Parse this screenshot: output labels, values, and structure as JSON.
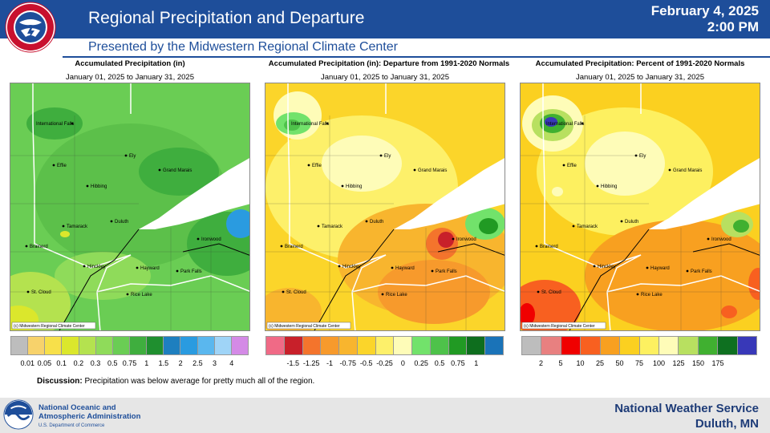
{
  "header": {
    "title": "Regional Precipitation and Departure",
    "date": "February 4, 2025",
    "time": "2:00 PM",
    "subtitle": "Presented by the Midwestern Regional Climate Center"
  },
  "panels": [
    {
      "title": "Accumulated Precipitation (in)",
      "range": "January 01, 2025 to January 31, 2025",
      "legend_colors": [
        "#bdbdbd",
        "#f7d26b",
        "#f7e04a",
        "#dbe72c",
        "#b4e24f",
        "#8fdb5a",
        "#6acd54",
        "#3fae3e",
        "#1f8f2f",
        "#1e7fbf",
        "#2a9be0",
        "#5ab7ee",
        "#9fd4f7",
        "#d48ae6"
      ],
      "legend_labels": [
        "0.01",
        "0.05",
        "0.1",
        "0.2",
        "0.3",
        "0.5",
        "0.75",
        "1",
        "1.5",
        "2",
        "2.5",
        "3",
        "4"
      ]
    },
    {
      "title": "Accumulated Precipitation (in): Departure from 1991-2020 Normals",
      "range": "January 01, 2025 to January 31, 2025",
      "legend_colors": [
        "#f06a86",
        "#c8202a",
        "#f4742c",
        "#f79a2c",
        "#f8b52e",
        "#fbd52a",
        "#fdf06a",
        "#fefcb8",
        "#72e26b",
        "#4ec24a",
        "#219a23",
        "#0e6e1e",
        "#1a73b8"
      ],
      "legend_labels": [
        "-1.5",
        "-1.25",
        "-1",
        "-0.75",
        "-0.5",
        "-0.25",
        "0",
        "0.25",
        "0.5",
        "0.75",
        "1"
      ]
    },
    {
      "title": "Accumulated Precipitation: Percent of 1991-2020 Normals",
      "range": "January 01, 2025 to January 31, 2025",
      "legend_colors": [
        "#bdbdbd",
        "#e88080",
        "#f00000",
        "#f86020",
        "#f8a020",
        "#fbd020",
        "#fdf060",
        "#fefcb8",
        "#b8e060",
        "#40b030",
        "#0e7020",
        "#3838b8"
      ],
      "legend_labels": [
        "2",
        "5",
        "10",
        "25",
        "50",
        "75",
        "100",
        "125",
        "150",
        "175"
      ]
    }
  ],
  "cities": {
    "intl_falls": "International Falls",
    "ely": "Ely",
    "effie": "Effie",
    "grand_marais": "Grand Marais",
    "hibbing": "Hibbing",
    "tamarack": "Tamarack",
    "duluth": "Duluth",
    "ironwood": "Ironwood",
    "brainerd": "Brainerd",
    "hinckley": "Hinckley",
    "hayward": "Hayward",
    "park_falls": "Park Falls",
    "st_cloud": "St. Cloud",
    "rice_lake": "Rice Lake"
  },
  "copyright": "(c) Midwestern Regional Climate Center",
  "discussion": {
    "label": "Discussion:",
    "text": " Precipitation  was below average for pretty much  all of the region."
  },
  "footer": {
    "noaa_line1": "National Oceanic and",
    "noaa_line2": "Atmospheric Administration",
    "noaa_sub": "U.S. Department of Commerce",
    "nws_line1": "National  Weather  Service",
    "nws_line2": "Duluth,  MN"
  },
  "icons": {
    "nws": "nws-logo-icon",
    "noaa": "noaa-logo-icon"
  }
}
